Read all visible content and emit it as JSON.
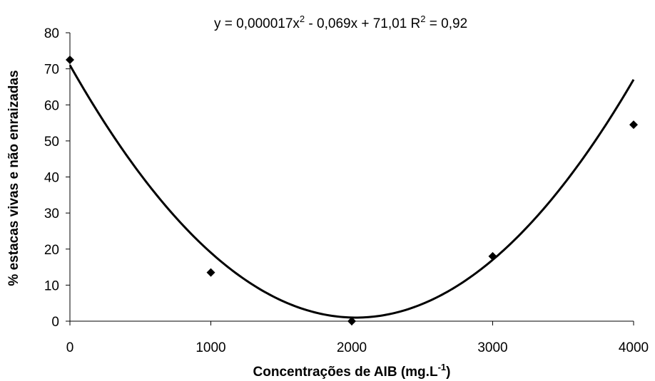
{
  "chart_data": {
    "type": "scatter",
    "equation": {
      "prefix": "y = 0,000017x",
      "middle": " - 0,069x + 71,01  R",
      "suffix": " = 0,92",
      "exp": "2",
      "coeffs": {
        "a": 1.7e-05,
        "b": -0.069,
        "c": 71.01
      }
    },
    "xlabel": {
      "main": "Concentrações de AIB (mg.L",
      "exp": "-1",
      "close": ")"
    },
    "ylabel": "% estacas vivas e não enraizadas",
    "xlim": [
      0,
      4000
    ],
    "ylim": [
      0,
      80
    ],
    "xticks": [
      0,
      1000,
      2000,
      3000,
      4000
    ],
    "yticks": [
      0,
      10,
      20,
      30,
      40,
      50,
      60,
      70,
      80
    ],
    "points": [
      {
        "x": 0,
        "y": 72.5
      },
      {
        "x": 1000,
        "y": 13.5
      },
      {
        "x": 2000,
        "y": 0
      },
      {
        "x": 3000,
        "y": 18
      },
      {
        "x": 4000,
        "y": 54.5
      }
    ],
    "trendline": "quadratic",
    "grid": false,
    "legend": "none"
  }
}
